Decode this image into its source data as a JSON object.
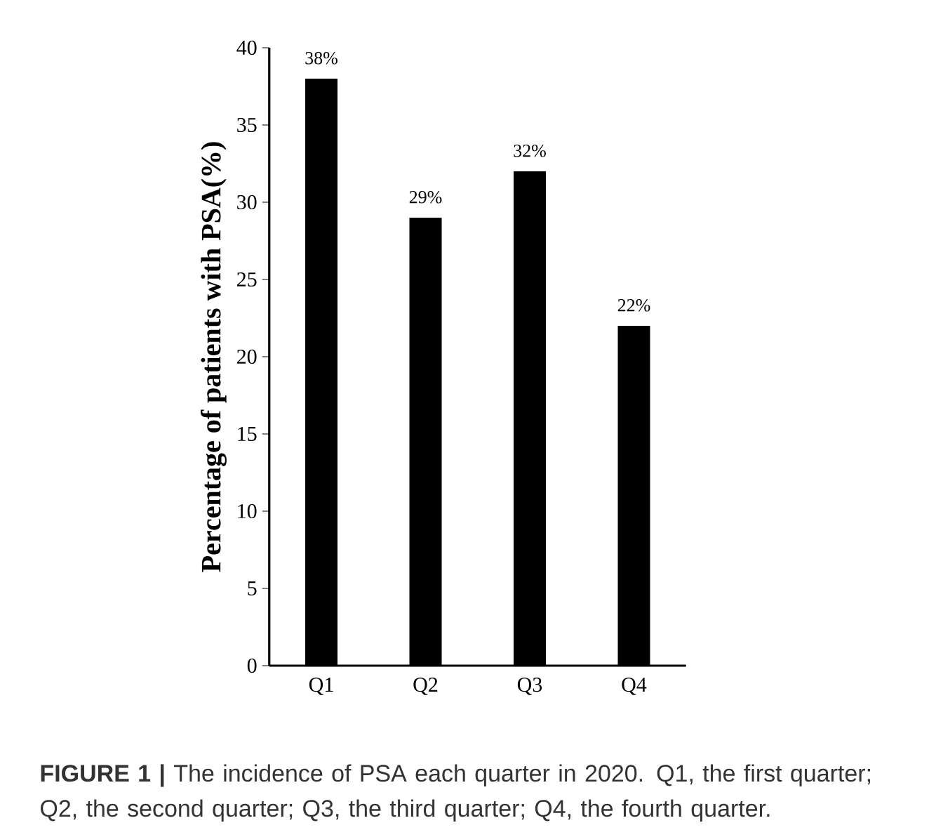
{
  "chart_data": {
    "type": "bar",
    "ylabel": "Percentage of patients with PSA(%)",
    "categories": [
      "Q1",
      "Q2",
      "Q3",
      "Q4"
    ],
    "values": [
      38,
      29,
      32,
      22
    ],
    "value_labels": [
      "38%",
      "29%",
      "32%",
      "22%"
    ],
    "color": "#000000",
    "ylim": [
      0,
      40
    ],
    "yticks": [
      0,
      5,
      10,
      15,
      20,
      25,
      30,
      35,
      40
    ],
    "grid": false,
    "annotations": [
      "**FIGURE 1 |** The incidence of PSA each quarter in 2020. Q1, the first quarter; Q2, the second quarter; Q3, the third quarter; Q4, the fourth quarter."
    ]
  }
}
